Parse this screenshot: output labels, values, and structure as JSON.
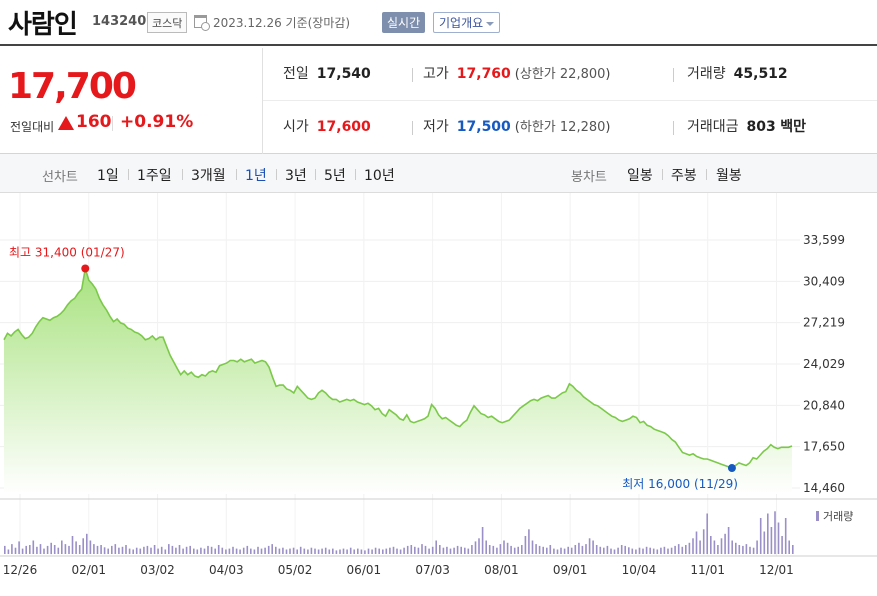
{
  "header": {
    "name": "사람인",
    "code": "143240",
    "market": "코스닥",
    "date": "2023.12.26",
    "basis": "기준(장마감)",
    "realtime_label": "실시간",
    "company_label": "기업개요"
  },
  "quote": {
    "price": "17,700",
    "change_label": "전일대비",
    "change": "160",
    "change_pct": "+0.91%",
    "direction": "up",
    "prev_close_label": "전일",
    "prev_close": "17,540",
    "high_label": "고가",
    "high": "17,760",
    "upper_limit_label": "상한가",
    "upper_limit": "22,800",
    "volume_label": "거래량",
    "volume": "45,512",
    "open_label": "시가",
    "open": "17,600",
    "low_label": "저가",
    "low": "17,500",
    "lower_limit_label": "하한가",
    "lower_limit": "12,280",
    "amount_label": "거래대금",
    "amount": "803",
    "amount_unit": "백만"
  },
  "tabs": {
    "line_label": "선차트",
    "line_periods": [
      "1일",
      "1주일",
      "3개월",
      "1년",
      "3년",
      "5년",
      "10년"
    ],
    "active_period": "1년",
    "candle_label": "봉차트",
    "candle_periods": [
      "일봉",
      "주봉",
      "월봉"
    ]
  },
  "colors": {
    "up": "#e5181b",
    "down": "#1659c1",
    "line": "#7cc94a",
    "fill_top": "#a8e27f",
    "fill_bottom": "#ffffff",
    "volume_bar": "#9b8fc7"
  },
  "chart_data": {
    "type": "area",
    "ylim": [
      14460,
      33599
    ],
    "y_ticks": [
      "33,599",
      "30,409",
      "27,219",
      "24,029",
      "20,840",
      "17,650",
      "14,460"
    ],
    "x_ticks": [
      "12/26",
      "02/01",
      "03/02",
      "04/03",
      "05/02",
      "06/01",
      "07/03",
      "08/01",
      "09/01",
      "10/04",
      "11/01",
      "12/01"
    ],
    "max_annotation": "최고 31,400 (01/27)",
    "min_annotation": "최저 16,000 (11/29)",
    "volume_legend": "거래량",
    "series": [
      {
        "values": [
          25900,
          26400,
          26200,
          26500,
          26700,
          26300,
          26000,
          26100,
          26400,
          26900,
          27300,
          27600,
          27500,
          27400,
          27600,
          27700,
          27900,
          28200,
          28600,
          28900,
          29100,
          29500,
          29800,
          31400,
          30500,
          30200,
          29800,
          29100,
          28600,
          28200,
          27700,
          27300,
          27500,
          27200,
          27100,
          26800,
          26700,
          26500,
          26400,
          26200,
          25900,
          26000,
          26200,
          25900,
          26100,
          26100,
          25400,
          24700,
          24200,
          23700,
          23200,
          23500,
          23200,
          23400,
          23100,
          23000,
          23200,
          23100,
          23400,
          23500,
          23400,
          23900,
          24000,
          24100,
          24300,
          24300,
          24200,
          24400,
          24200,
          24300,
          24400,
          24100,
          24200,
          24300,
          24200,
          23800,
          23000,
          22300,
          22400,
          22400,
          22100,
          22000,
          21800,
          22300,
          22000,
          21700,
          21400,
          21300,
          21400,
          21800,
          22000,
          21800,
          21500,
          21300,
          21300,
          21100,
          21200,
          21300,
          21200,
          21300,
          21100,
          21000,
          20900,
          21000,
          20800,
          20500,
          20600,
          20200,
          20000,
          20500,
          20300,
          20100,
          19800,
          19700,
          20100,
          19600,
          19500,
          19600,
          19700,
          19800,
          20000,
          20900,
          20600,
          20100,
          19800,
          19900,
          19700,
          19500,
          19300,
          19200,
          19500,
          19700,
          20300,
          20800,
          20500,
          20200,
          20100,
          19900,
          20000,
          19800,
          19600,
          19500,
          19600,
          19700,
          20000,
          20300,
          20600,
          20800,
          21000,
          21200,
          21300,
          21200,
          21400,
          21500,
          21600,
          21400,
          21400,
          21600,
          21800,
          21900,
          22500,
          22300,
          22000,
          21800,
          21500,
          21300,
          21100,
          20900,
          20800,
          20600,
          20400,
          20200,
          20000,
          19900,
          19700,
          19600,
          19700,
          19800,
          20000,
          19900,
          19500,
          19600,
          19300,
          19200,
          19000,
          18900,
          18800,
          18700,
          18500,
          18200,
          18000,
          17600,
          17200,
          17100,
          17000,
          17100,
          16900,
          16800,
          16700,
          16700,
          16600,
          16500,
          16400,
          16300,
          16200,
          16100,
          16000,
          16200,
          16400,
          16300,
          16200,
          16400,
          16800,
          16700,
          17000,
          17300,
          17500,
          17800,
          17600,
          17500,
          17600,
          17600,
          17600,
          17700
        ]
      }
    ],
    "volume": [
      0.18,
      0.1,
      0.22,
      0.14,
      0.28,
      0.12,
      0.18,
      0.2,
      0.3,
      0.16,
      0.22,
      0.12,
      0.18,
      0.25,
      0.2,
      0.14,
      0.3,
      0.22,
      0.18,
      0.4,
      0.28,
      0.2,
      0.35,
      0.45,
      0.3,
      0.22,
      0.18,
      0.2,
      0.15,
      0.12,
      0.18,
      0.22,
      0.14,
      0.16,
      0.2,
      0.12,
      0.1,
      0.14,
      0.12,
      0.16,
      0.18,
      0.14,
      0.2,
      0.12,
      0.16,
      0.1,
      0.22,
      0.18,
      0.14,
      0.2,
      0.12,
      0.16,
      0.18,
      0.12,
      0.1,
      0.14,
      0.12,
      0.18,
      0.16,
      0.12,
      0.2,
      0.14,
      0.1,
      0.12,
      0.16,
      0.12,
      0.1,
      0.14,
      0.18,
      0.12,
      0.1,
      0.16,
      0.12,
      0.14,
      0.18,
      0.22,
      0.16,
      0.12,
      0.14,
      0.1,
      0.12,
      0.14,
      0.1,
      0.16,
      0.12,
      0.1,
      0.14,
      0.12,
      0.1,
      0.12,
      0.14,
      0.1,
      0.12,
      0.08,
      0.1,
      0.12,
      0.1,
      0.14,
      0.1,
      0.12,
      0.1,
      0.08,
      0.12,
      0.1,
      0.14,
      0.12,
      0.1,
      0.12,
      0.14,
      0.16,
      0.12,
      0.1,
      0.14,
      0.18,
      0.2,
      0.16,
      0.14,
      0.22,
      0.18,
      0.12,
      0.16,
      0.3,
      0.2,
      0.14,
      0.16,
      0.12,
      0.14,
      0.18,
      0.16,
      0.14,
      0.12,
      0.2,
      0.28,
      0.35,
      0.6,
      0.3,
      0.2,
      0.18,
      0.14,
      0.22,
      0.3,
      0.25,
      0.18,
      0.14,
      0.16,
      0.2,
      0.4,
      0.55,
      0.3,
      0.22,
      0.18,
      0.16,
      0.14,
      0.2,
      0.12,
      0.1,
      0.14,
      0.12,
      0.16,
      0.14,
      0.2,
      0.25,
      0.18,
      0.22,
      0.35,
      0.3,
      0.2,
      0.16,
      0.14,
      0.18,
      0.12,
      0.1,
      0.14,
      0.2,
      0.18,
      0.15,
      0.12,
      0.1,
      0.14,
      0.12,
      0.16,
      0.14,
      0.12,
      0.1,
      0.14,
      0.16,
      0.12,
      0.14,
      0.18,
      0.22,
      0.16,
      0.2,
      0.25,
      0.35,
      0.5,
      0.3,
      0.55,
      0.9,
      0.4,
      0.3,
      0.2,
      0.35,
      0.45,
      0.6,
      0.3,
      0.25,
      0.2,
      0.18,
      0.22,
      0.16,
      0.14,
      0.3,
      0.8,
      0.5,
      0.9,
      0.6,
      0.95,
      0.7,
      0.4,
      0.8,
      0.3,
      0.2
    ]
  }
}
